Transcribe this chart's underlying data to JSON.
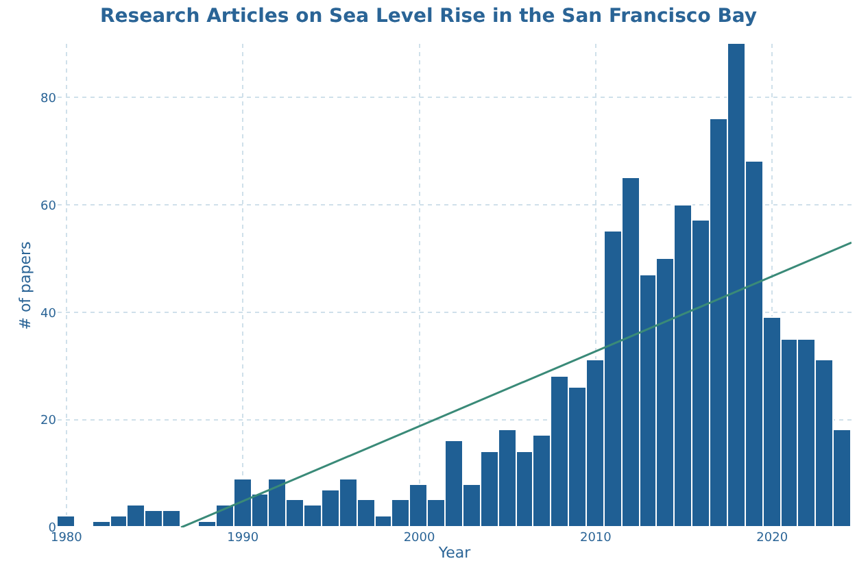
{
  "chart_data": {
    "type": "bar",
    "title": "Research Articles on Sea Level Rise in the San Francisco Bay",
    "xlabel": "Year",
    "ylabel": "# of papers",
    "x": [
      1980,
      1981,
      1982,
      1983,
      1984,
      1985,
      1986,
      1987,
      1988,
      1989,
      1990,
      1991,
      1992,
      1993,
      1994,
      1995,
      1996,
      1997,
      1998,
      1999,
      2000,
      2001,
      2002,
      2003,
      2004,
      2005,
      2006,
      2007,
      2008,
      2009,
      2010,
      2011,
      2012,
      2013,
      2014,
      2015,
      2016,
      2017,
      2018,
      2019,
      2020,
      2021,
      2022,
      2023,
      2024
    ],
    "series": [
      {
        "color": "#1f5f94",
        "values": [
          2,
          0,
          1,
          2,
          4,
          3,
          3,
          0,
          1,
          4,
          9,
          6,
          9,
          5,
          4,
          7,
          9,
          5,
          2,
          5,
          8,
          5,
          16,
          8,
          14,
          18,
          14,
          17,
          28,
          26,
          31,
          55,
          65,
          47,
          50,
          60,
          57,
          76,
          90,
          68,
          39,
          35,
          35,
          31,
          18
        ]
      },
      {
        "type": "line",
        "color": "#3a8a78",
        "x": [
          1986.5,
          2024.5
        ],
        "values": [
          0,
          53
        ]
      }
    ],
    "xlim": [
      1979.5,
      2024.5
    ],
    "xticks": [
      1980,
      1990,
      2000,
      2010,
      2020
    ],
    "ylim": [
      0,
      90
    ],
    "yticks": [
      0,
      20,
      40,
      60,
      80
    ],
    "grid": true
  }
}
